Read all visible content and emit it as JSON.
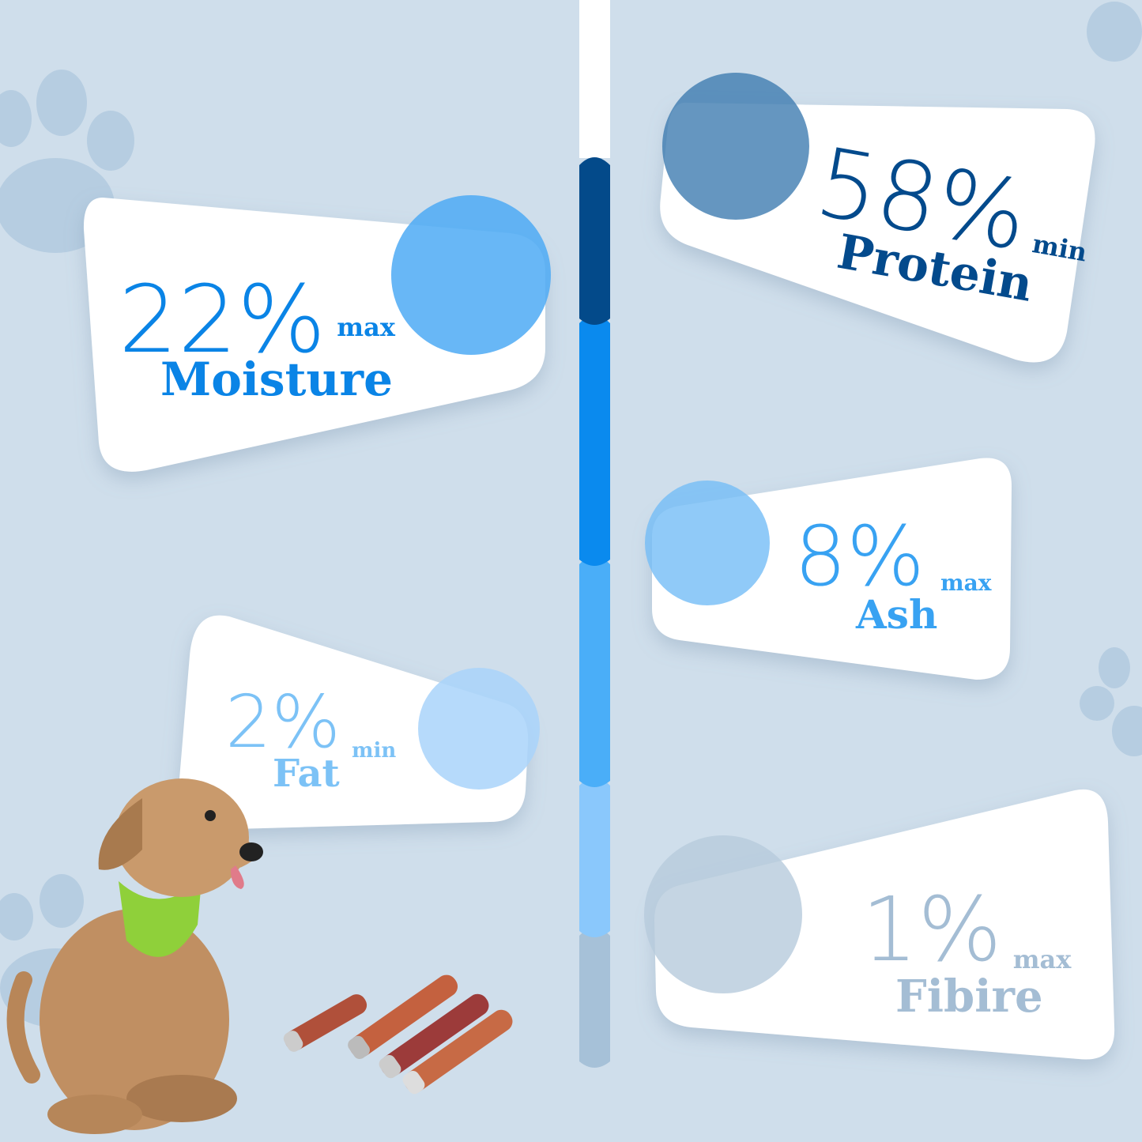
{
  "stats": [
    {
      "value": "22%",
      "qualifier": "max",
      "label": "Moisture",
      "color": "#0a84e6",
      "circle": "#4eaaf4"
    },
    {
      "value": "58%",
      "qualifier": "min",
      "label": "Protein",
      "color": "#034a8c",
      "circle": "#3f7cb0"
    },
    {
      "value": "8%",
      "qualifier": "max",
      "label": "Ash",
      "color": "#38a2f2",
      "circle": "#74bdf6"
    },
    {
      "value": "2%",
      "qualifier": "min",
      "label": "Fat",
      "color": "#7cc2f6",
      "circle": "#a9d4fa"
    },
    {
      "value": "1%",
      "qualifier": "max",
      "label": "Fibire",
      "color": "#a4bdd4",
      "circle": "#b6cbdc"
    }
  ],
  "bar_colors": [
    "#034a8a",
    "#0a8aee",
    "#4aaef8",
    "#8ac8fc",
    "#a6c1d8"
  ],
  "background": "#cfdeeb"
}
